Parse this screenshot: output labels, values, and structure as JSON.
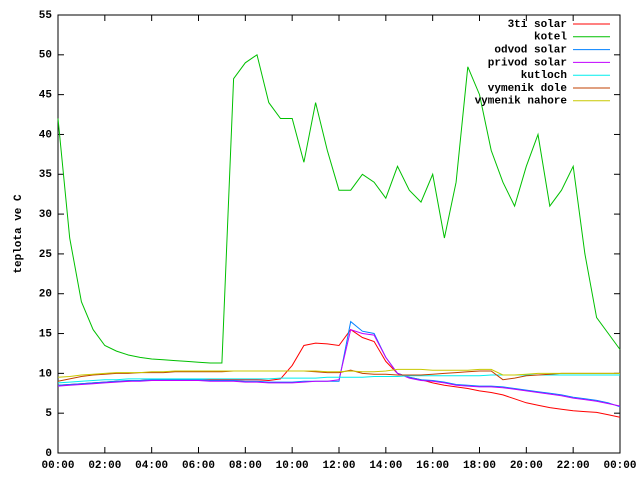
{
  "chart_data": {
    "type": "line",
    "y_label": "teplota ve C",
    "x": [
      0,
      0.5,
      1,
      1.5,
      2,
      2.5,
      3,
      3.5,
      4,
      4.5,
      5,
      5.5,
      6,
      6.5,
      7,
      7.5,
      8,
      8.5,
      9,
      9.5,
      10,
      10.5,
      11,
      11.5,
      12,
      12.5,
      13,
      13.5,
      14,
      14.5,
      15,
      15.5,
      16,
      16.5,
      17,
      17.5,
      18,
      18.5,
      19,
      19.5,
      20,
      20.5,
      21,
      21.5,
      22,
      22.5,
      23,
      23.5,
      24
    ],
    "xlim": [
      0,
      24
    ],
    "xticks": [
      {
        "value": 0,
        "label": "00:00"
      },
      {
        "value": 2,
        "label": "02:00"
      },
      {
        "value": 4,
        "label": "04:00"
      },
      {
        "value": 6,
        "label": "06:00"
      },
      {
        "value": 8,
        "label": "08:00"
      },
      {
        "value": 10,
        "label": "10:00"
      },
      {
        "value": 12,
        "label": "12:00"
      },
      {
        "value": 14,
        "label": "14:00"
      },
      {
        "value": 16,
        "label": "16:00"
      },
      {
        "value": 18,
        "label": "18:00"
      },
      {
        "value": 20,
        "label": "20:00"
      },
      {
        "value": 22,
        "label": "22:00"
      },
      {
        "value": 24,
        "label": "00:00"
      }
    ],
    "ylim": [
      0,
      55
    ],
    "yticks": [
      0,
      5,
      10,
      15,
      20,
      25,
      30,
      35,
      40,
      45,
      50,
      55
    ],
    "legend": "top-right",
    "series": [
      {
        "name": "3ti solar",
        "color": "#ff0000",
        "values": [
          8.5,
          8.6,
          8.7,
          8.8,
          8.9,
          9.0,
          9.0,
          9.1,
          9.2,
          9.2,
          9.2,
          9.2,
          9.2,
          9.2,
          9.2,
          9.2,
          9.2,
          9.2,
          9.1,
          9.3,
          11,
          13.5,
          13.8,
          13.7,
          13.5,
          15.5,
          14.5,
          14,
          11.5,
          10,
          9.5,
          9.2,
          8.8,
          8.5,
          8.3,
          8.1,
          7.8,
          7.6,
          7.3,
          6.8,
          6.3,
          6,
          5.7,
          5.5,
          5.3,
          5.2,
          5.1,
          4.8,
          4.5
        ]
      },
      {
        "name": "kotel",
        "color": "#00c000",
        "values": [
          42,
          27,
          19,
          15.5,
          13.5,
          12.8,
          12.3,
          12,
          11.8,
          11.7,
          11.6,
          11.5,
          11.4,
          11.3,
          11.3,
          47,
          49,
          50,
          44,
          42,
          42,
          36.5,
          44,
          38,
          33,
          33,
          35,
          34,
          32,
          36,
          33,
          31.5,
          35,
          27,
          34,
          48.5,
          45,
          38,
          34,
          31,
          36,
          40,
          31,
          33,
          36,
          25,
          17,
          15,
          13
        ]
      },
      {
        "name": "odvod solar",
        "color": "#0080ff",
        "values": [
          8.5,
          8.6,
          8.7,
          8.8,
          8.9,
          9.0,
          9.1,
          9.1,
          9.2,
          9.2,
          9.2,
          9.2,
          9.2,
          9.1,
          9.1,
          9.1,
          9.0,
          9.0,
          8.9,
          8.9,
          8.9,
          9,
          9,
          9,
          9,
          16.5,
          15.3,
          15,
          12,
          10,
          9.5,
          9.2,
          9.1,
          8.9,
          8.6,
          8.5,
          8.4,
          8.4,
          8.3,
          8.1,
          7.9,
          7.7,
          7.5,
          7.3,
          7,
          6.8,
          6.6,
          6.3,
          5.8
        ]
      },
      {
        "name": "privod solar",
        "color": "#c000ff",
        "values": [
          8.4,
          8.5,
          8.6,
          8.7,
          8.8,
          8.9,
          9.0,
          9.0,
          9.1,
          9.1,
          9.1,
          9.1,
          9.1,
          9.0,
          9.0,
          9.0,
          8.9,
          8.9,
          8.8,
          8.8,
          8.8,
          8.9,
          9,
          9,
          9.2,
          15.5,
          15,
          14.8,
          12,
          10,
          9.4,
          9.1,
          9,
          8.8,
          8.5,
          8.4,
          8.3,
          8.3,
          8.2,
          8,
          7.8,
          7.6,
          7.4,
          7.2,
          6.9,
          6.7,
          6.5,
          6.2,
          5.9
        ]
      },
      {
        "name": "kutloch",
        "color": "#00eeee",
        "values": [
          8.8,
          8.9,
          9,
          9.1,
          9.2,
          9.2,
          9.3,
          9.3,
          9.3,
          9.3,
          9.3,
          9.3,
          9.3,
          9.3,
          9.3,
          9.3,
          9.3,
          9.3,
          9.3,
          9.4,
          9.4,
          9.4,
          9.4,
          9.5,
          9.5,
          9.5,
          9.5,
          9.6,
          9.6,
          9.6,
          9.7,
          9.7,
          9.7,
          9.7,
          9.7,
          9.7,
          9.7,
          9.8,
          9.8,
          9.8,
          9.8,
          9.8,
          9.8,
          9.8,
          9.8,
          9.8,
          9.8,
          9.8,
          9.8
        ]
      },
      {
        "name": "vymenik dole",
        "color": "#c04000",
        "values": [
          9,
          9.3,
          9.6,
          9.8,
          9.9,
          10,
          10,
          10.1,
          10.1,
          10.1,
          10.2,
          10.2,
          10.2,
          10.2,
          10.2,
          10.3,
          10.3,
          10.3,
          10.3,
          10.3,
          10.3,
          10.3,
          10.2,
          10.1,
          10.1,
          10.4,
          10,
          9.9,
          9.9,
          9.8,
          9.8,
          9.8,
          9.9,
          10,
          10.1,
          10.2,
          10.3,
          10.3,
          9.2,
          9.4,
          9.7,
          9.8,
          9.9,
          10,
          10,
          10,
          10,
          10,
          10
        ]
      },
      {
        "name": "vymenik nahore",
        "color": "#c8c800",
        "values": [
          9.5,
          9.6,
          9.8,
          9.9,
          10,
          10.1,
          10.1,
          10.1,
          10.2,
          10.2,
          10.3,
          10.3,
          10.3,
          10.3,
          10.3,
          10.3,
          10.3,
          10.3,
          10.3,
          10.3,
          10.3,
          10.3,
          10.3,
          10.2,
          10.2,
          10.3,
          10.2,
          10.2,
          10.3,
          10.5,
          10.5,
          10.5,
          10.4,
          10.4,
          10.4,
          10.4,
          10.5,
          10.5,
          9.8,
          9.8,
          9.9,
          10,
          10,
          10,
          10,
          10,
          10,
          10,
          10
        ]
      }
    ]
  }
}
